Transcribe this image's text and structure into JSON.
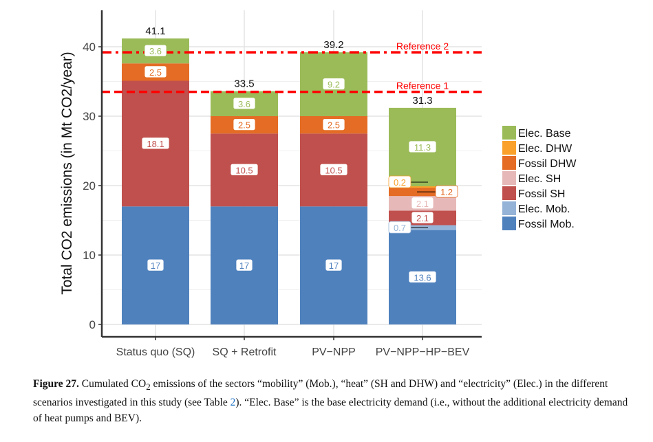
{
  "chart_data": {
    "type": "bar",
    "stacked": true,
    "ylabel": "Total CO2 emissions (in Mt CO2/year)",
    "ylim": [
      0,
      43.5
    ],
    "yticks": [
      0,
      10,
      20,
      30,
      40
    ],
    "grid": true,
    "legend_position": "right",
    "categories": [
      "Status quo (SQ)",
      "SQ + Retrofit",
      "PV−NPP",
      "PV−NPP−HP−BEV"
    ],
    "totals": [
      "41.1",
      "33.5",
      "39.2",
      "31.3"
    ],
    "series": [
      {
        "name": "Fossil Mob.",
        "color": "#4f81bd",
        "values": [
          17,
          17,
          17,
          13.6
        ],
        "labels": [
          "17",
          "17",
          "17",
          "13.6"
        ]
      },
      {
        "name": "Elec. Mob.",
        "color": "#95b3d7",
        "values": [
          0,
          0,
          0,
          0.7
        ],
        "labels": [
          "",
          "",
          "",
          "0.7"
        ]
      },
      {
        "name": "Fossil SH",
        "color": "#c0504d",
        "values": [
          18.1,
          10.5,
          10.5,
          2.1
        ],
        "labels": [
          "18.1",
          "10.5",
          "10.5",
          "2.1"
        ]
      },
      {
        "name": "Elec. SH",
        "color": "#e6b9b8",
        "values": [
          0,
          0,
          0,
          2.1
        ],
        "labels": [
          "",
          "",
          "",
          "2.1"
        ]
      },
      {
        "name": "Fossil DHW",
        "color": "#e46c24",
        "values": [
          2.5,
          2.5,
          2.5,
          1.2
        ],
        "labels": [
          "2.5",
          "2.5",
          "2.5",
          "1.2"
        ]
      },
      {
        "name": "Elec. DHW",
        "color": "#f9a12a",
        "values": [
          0,
          0,
          0,
          0.2
        ],
        "labels": [
          "",
          "",
          "",
          "0.2"
        ]
      },
      {
        "name": "Elec. Base",
        "color": "#9bbb59",
        "values": [
          3.6,
          3.6,
          9.2,
          11.3
        ],
        "labels": [
          "3.6",
          "3.6",
          "9.2",
          "11.3"
        ]
      }
    ],
    "reference_lines": [
      {
        "name": "Reference 2",
        "value": 39.2,
        "style": "dash-dot",
        "color": "#ff0000"
      },
      {
        "name": "Reference 1",
        "value": 33.5,
        "style": "dashed",
        "color": "#ff0000"
      }
    ]
  },
  "caption": {
    "label": "Figure 27.",
    "text_1": " Cumulated CO",
    "sub": "2",
    "text_2": " emissions of the sectors “mobility” (Mob.), “heat” (SH and DHW) and “electricity” (Elec.) in the different scenarios investigated in this study (see Table ",
    "table_ref": "2",
    "text_3": "). “Elec. Base” is the base electricity demand (i.e., without the additional electricity demand of heat pumps and BEV)."
  }
}
